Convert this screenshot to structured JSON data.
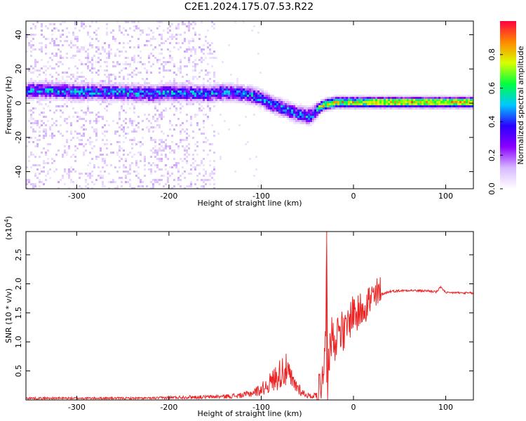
{
  "figure": {
    "title": "C2E1.2024.175.07.53.R22"
  },
  "chart_data": [
    {
      "type": "heatmap",
      "xlabel": "Height of straight line (km)",
      "ylabel": "Frequency (Hz)",
      "xlim": [
        -355,
        130
      ],
      "ylim": [
        -50,
        48
      ],
      "x_ticks": [
        -300,
        -200,
        -100,
        0,
        100
      ],
      "x_tick_labels": [
        "-300",
        "-200",
        "-100",
        "0",
        "100"
      ],
      "y_ticks": [
        -40,
        -20,
        0,
        20,
        40
      ],
      "y_tick_labels": [
        "-40",
        "-20",
        "0",
        "20",
        "40"
      ],
      "colorbar": {
        "label": "Normalized spectral amplitude",
        "range": [
          0,
          1
        ],
        "ticks": [
          0.0,
          0.2,
          0.4,
          0.6,
          0.8
        ],
        "tick_labels": [
          "0.0",
          "0.2",
          "0.4",
          "0.6",
          "0.8"
        ],
        "colors": [
          "#ffffff",
          "#d8b8ff",
          "#8a00ff",
          "#2a00ff",
          "#00c8ff",
          "#00ff40",
          "#d8ff00",
          "#ff8800",
          "#ff0040"
        ]
      },
      "center_frequency_trace": {
        "x": [
          -330,
          -300,
          -260,
          -220,
          -200,
          -160,
          -140,
          -120,
          -110,
          -100,
          -90,
          -80,
          -70,
          -60,
          -50,
          -45,
          -40,
          -35,
          -30,
          -20,
          -10,
          0,
          10,
          20,
          40,
          60,
          80,
          100,
          130
        ],
        "y": [
          8,
          7,
          7,
          6,
          7,
          6,
          7,
          6,
          5,
          3,
          0,
          -2,
          -4,
          -6,
          -7,
          -6,
          -3,
          -1,
          0,
          1,
          1,
          1,
          1,
          1,
          1,
          1,
          1,
          1,
          1
        ]
      }
    },
    {
      "type": "line",
      "xlabel": "Height of straight line (km)",
      "ylabel": "SNR (10 * v/v)",
      "y_multiplier": "(x10",
      "y_multiplier_exp": "4",
      "xlim": [
        -355,
        130
      ],
      "ylim": [
        0,
        2.9
      ],
      "x_ticks": [
        -300,
        -200,
        -100,
        0,
        100
      ],
      "x_tick_labels": [
        "-300",
        "-200",
        "-100",
        "0",
        "100"
      ],
      "y_ticks": [
        0.5,
        1.0,
        1.5,
        2.0,
        2.5
      ],
      "y_tick_labels": [
        "0.5",
        "1.0",
        "1.5",
        "2.0",
        "2.5"
      ],
      "color": "#ee2222",
      "series": [
        {
          "x": [
            -355,
            -300,
            -250,
            -220,
            -200,
            -180,
            -160,
            -140,
            -120,
            -110,
            -100,
            -90,
            -80,
            -75,
            -70,
            -65,
            -60,
            -55,
            -50,
            -45,
            -40,
            -35,
            -32,
            -30,
            -29,
            -28,
            -27,
            -26,
            -25,
            -22,
            -20,
            -15,
            -10,
            -5,
            0,
            5,
            10,
            20,
            30,
            40,
            50,
            60,
            70,
            80,
            90,
            95,
            100,
            110,
            120,
            130
          ],
          "y": [
            0.03,
            0.03,
            0.03,
            0.03,
            0.04,
            0.05,
            0.05,
            0.06,
            0.08,
            0.12,
            0.18,
            0.3,
            0.45,
            0.55,
            0.42,
            0.28,
            0.22,
            0.12,
            0.08,
            0.06,
            0.1,
            0.3,
            0.7,
            1.0,
            2.9,
            0.3,
            1.1,
            0.6,
            1.0,
            1.2,
            1.0,
            1.3,
            1.1,
            1.35,
            1.55,
            1.45,
            1.65,
            1.72,
            1.82,
            1.87,
            1.88,
            1.89,
            1.88,
            1.88,
            1.86,
            1.95,
            1.84,
            1.85,
            1.84,
            1.84
          ]
        }
      ]
    }
  ]
}
